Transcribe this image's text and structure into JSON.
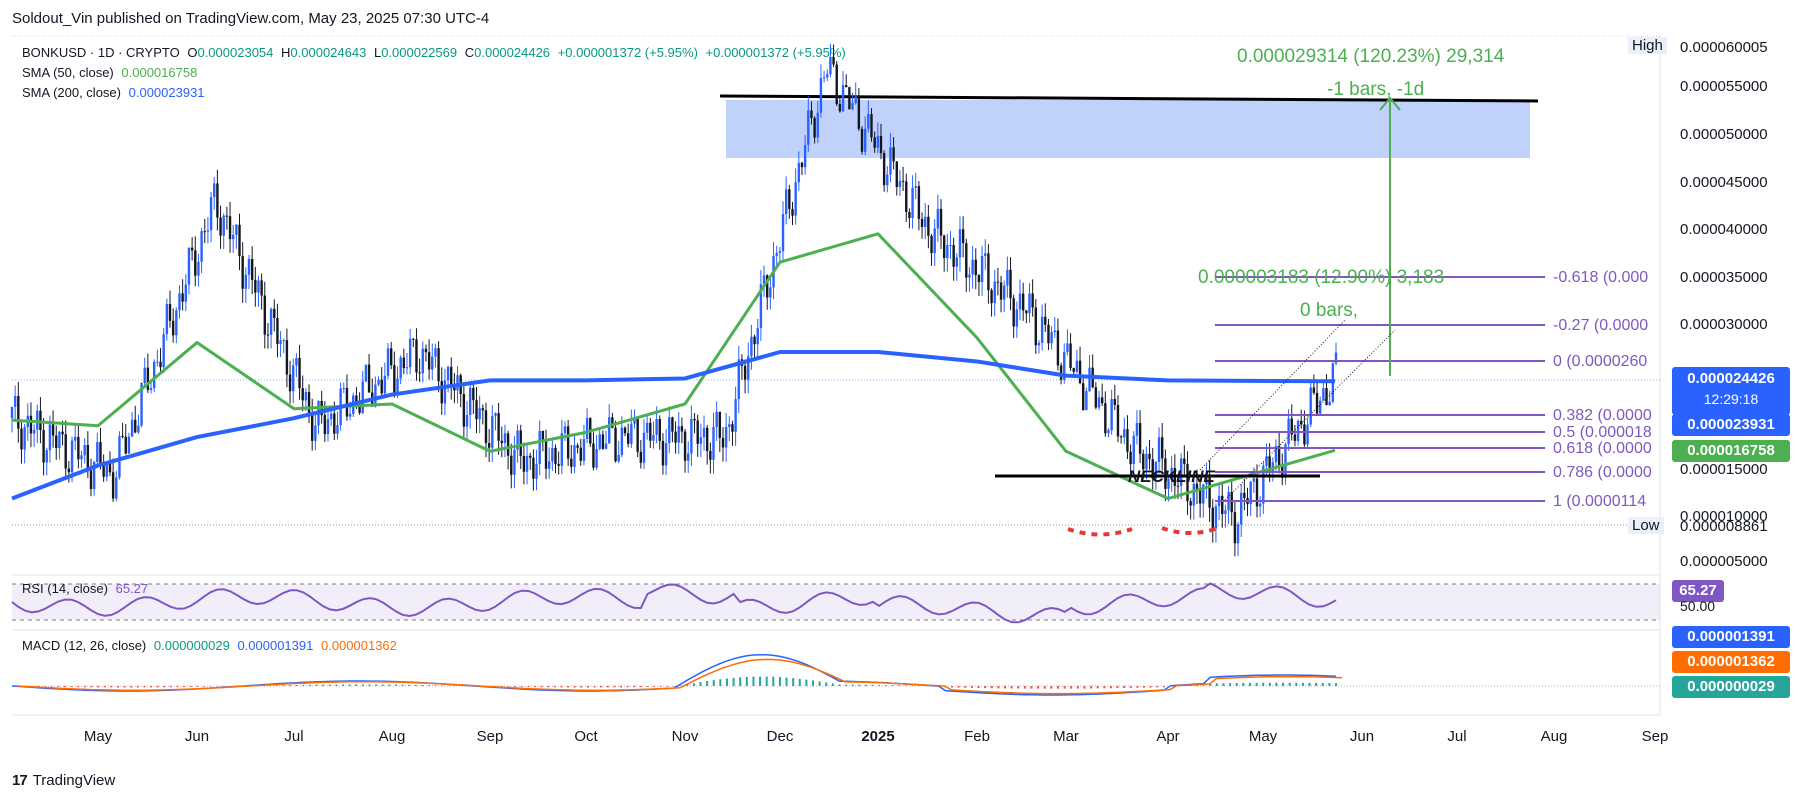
{
  "header": {
    "publisher": "Soldout_Vin published on TradingView.com, May 23, 2025 07:30 UTC-4"
  },
  "symbol": {
    "name": "BONKUSD · 1D · CRYPTO",
    "o_label": "O",
    "o": "0.000023054",
    "h_label": "H",
    "h": "0.000024643",
    "l_label": "L",
    "l": "0.000022569",
    "c_label": "C",
    "c": "0.000024426",
    "change": "+0.000001372 (+5.95%)",
    "change2": "+0.000001372 (+5.95%)"
  },
  "indicators": {
    "sma50": {
      "label": "SMA (50, close)",
      "value": "0.000016758",
      "color": "#4caf50"
    },
    "sma200": {
      "label": "SMA (200, close)",
      "value": "0.000023931",
      "color": "#2962ff"
    },
    "rsi": {
      "label": "RSI (14, close)",
      "value": "65.27",
      "badge": "65.27",
      "level_text": "50.00",
      "color": "#7e57c2"
    },
    "macd": {
      "label": "MACD (12, 26, close)",
      "v1": "0.000000029",
      "v2": "0.000001391",
      "v3": "0.000001362",
      "badge_macd": "0.000001391",
      "badge_signal": "0.000001362",
      "badge_hist": "0.000000029"
    }
  },
  "price_axis": {
    "high_label": "High",
    "high_value": "0.000060005",
    "low_label": "Low",
    "low_value": "0.000008861",
    "ticks": [
      "0.000055000",
      "0.000050000",
      "0.000045000",
      "0.000040000",
      "0.000035000",
      "0.000030000",
      "0.000015000",
      "0.000010000",
      "0.000005000"
    ],
    "last_price": "0.000024426",
    "countdown": "12:29:18",
    "sma200_badge": "0.000023931",
    "sma50_badge": "0.000016758"
  },
  "time_axis": {
    "labels": [
      "May",
      "Jun",
      "Jul",
      "Aug",
      "Sep",
      "Oct",
      "Nov",
      "Dec",
      "2025",
      "Feb",
      "Mar",
      "Apr",
      "May",
      "Jun",
      "Jul",
      "Aug",
      "Sep"
    ]
  },
  "annotations": {
    "measure_top": "0.000029314 (120.23%) 29,314",
    "measure_top_bars": "-1 bars, -1d",
    "measure_mid": "0.000003183 (12.90%) 3,183",
    "measure_mid_bars": "0 bars,",
    "neckline": "NECKLINE",
    "fib": [
      {
        "label": "-0.618 (0.000"
      },
      {
        "label": "-0.27 (0.0000"
      },
      {
        "label": "0 (0.0000260"
      },
      {
        "label": "0.382 (0.0000"
      },
      {
        "label": "0.5 (0.000018"
      },
      {
        "label": "0.618 (0.0000"
      },
      {
        "label": "0.786 (0.0000"
      },
      {
        "label": "1 (0.0000114"
      }
    ]
  },
  "footer": {
    "brand": "TradingView",
    "logo": "17"
  },
  "colors": {
    "sma50": "#4caf50",
    "sma200": "#2962ff",
    "fib": "#7e57c2",
    "measure": "#4caf50",
    "zone": "#a5bdf9",
    "rsi": "#7e57c2",
    "macd": "#2962ff",
    "signal": "#ff6d00"
  },
  "chart_data": {
    "type": "line",
    "title": "BONKUSD · 1D · CRYPTO",
    "x": [
      "Apr",
      "May",
      "Jun",
      "Jul",
      "Aug",
      "Sep",
      "Oct",
      "Nov",
      "Dec",
      "2025",
      "Feb",
      "Mar",
      "Apr",
      "May"
    ],
    "ylim": [
      5e-06,
      6e-05
    ],
    "series": [
      {
        "name": "SMA (50, close)",
        "values": [
          1.98e-05,
          1.92e-05,
          2.8e-05,
          2.1e-05,
          2.15e-05,
          1.65e-05,
          1.85e-05,
          2.15e-05,
          3.65e-05,
          3.95e-05,
          2.85e-05,
          1.65e-05,
          1.15e-05,
          1.66e-05
        ]
      },
      {
        "name": "SMA (200, close)",
        "values": [
          1.15e-05,
          1.5e-05,
          1.8e-05,
          2e-05,
          2.25e-05,
          2.4e-05,
          2.4e-05,
          2.42e-05,
          2.7e-05,
          2.7e-05,
          2.6e-05,
          2.45e-05,
          2.4e-05,
          2.39e-05
        ]
      }
    ],
    "candles_close_trace": [
      2e-05,
      1.4e-05,
      4.3e-05,
      1.9e-05,
      2.7e-05,
      1.55e-05,
      1.8e-05,
      1.8e-05,
      5.7e-05,
      4e-05,
      3.1e-05,
      1.7e-05,
      9.5e-06,
      2.44e-05
    ]
  }
}
